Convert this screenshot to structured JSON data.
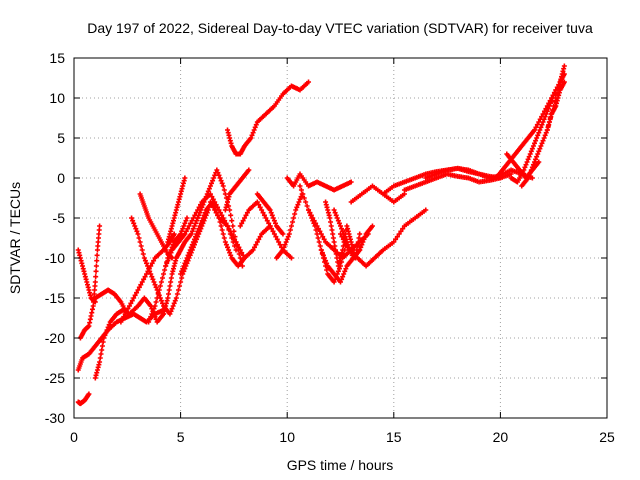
{
  "chart_data": {
    "type": "scatter",
    "title": "Day 197 of 2022, Sidereal Day-to-day VTEC variation (SDTVAR) for receiver tuva",
    "xlabel": "GPS time / hours",
    "ylabel": "SDTVAR / TECUs",
    "xlim": [
      0,
      25
    ],
    "ylim": [
      -30,
      15
    ],
    "xticks": [
      0,
      5,
      10,
      15,
      20,
      25
    ],
    "yticks": [
      -30,
      -25,
      -20,
      -15,
      -10,
      -5,
      0,
      5,
      10,
      15
    ],
    "grid": true,
    "marker": "+",
    "color": "#ff0000",
    "series": [
      {
        "x": [
          0.2,
          0.3,
          0.5,
          0.7
        ],
        "y": [
          -28,
          -28.2,
          -27.8,
          -27
        ]
      },
      {
        "x": [
          0.2,
          0.4,
          0.7,
          1.0,
          1.3,
          1.6,
          2.0,
          2.4,
          2.8,
          3.1,
          3.4,
          3.8,
          4.2
        ],
        "y": [
          -24,
          -22.5,
          -22,
          -21,
          -20,
          -19,
          -18,
          -17.5,
          -17,
          -17.5,
          -18,
          -17,
          -16.5
        ]
      },
      {
        "x": [
          0.2,
          0.4,
          0.6,
          0.8,
          1.0
        ],
        "y": [
          -9,
          -11,
          -13,
          -15,
          -15.5
        ]
      },
      {
        "x": [
          0.3,
          0.5,
          0.7,
          0.9,
          1.0,
          1.1,
          1.2
        ],
        "y": [
          -20,
          -19,
          -18.5,
          -16,
          -13,
          -9,
          -6
        ]
      },
      {
        "x": [
          1.0,
          1.2,
          1.4,
          1.7,
          2.0,
          2.3,
          2.6,
          3.0,
          3.3,
          3.6,
          3.9,
          4.2
        ],
        "y": [
          -25,
          -23,
          -20,
          -18,
          -17,
          -16.5,
          -17,
          -16,
          -15,
          -16,
          -18,
          -17
        ]
      },
      {
        "x": [
          1.0,
          1.3,
          1.6,
          1.9,
          2.2,
          2.5
        ],
        "y": [
          -15,
          -14.5,
          -14,
          -14.5,
          -15.5,
          -17
        ]
      },
      {
        "x": [
          2.2,
          2.6,
          3.0,
          3.4,
          3.8,
          4.2,
          4.5,
          4.7
        ],
        "y": [
          -18,
          -16,
          -14,
          -12,
          -10,
          -9,
          -8,
          -7
        ]
      },
      {
        "x": [
          2.7,
          3.0,
          3.3,
          3.6,
          3.9,
          4.2,
          4.5,
          4.8,
          5.1,
          5.4,
          5.7,
          6.0,
          6.3
        ],
        "y": [
          -5,
          -7,
          -10,
          -12,
          -14,
          -16,
          -17,
          -15,
          -12,
          -10,
          -8,
          -6,
          -4
        ]
      },
      {
        "x": [
          3.1,
          3.3,
          3.5,
          3.8,
          4.1,
          4.4,
          4.6
        ],
        "y": [
          -2,
          -3.5,
          -5,
          -6.5,
          -8,
          -9.5,
          -10
        ]
      },
      {
        "x": [
          3.5,
          3.8,
          4.1,
          4.4,
          4.7,
          5.0,
          5.3
        ],
        "y": [
          -18,
          -16,
          -13,
          -10,
          -8,
          -7,
          -5
        ]
      },
      {
        "x": [
          4.2,
          4.4,
          4.6,
          4.8,
          5.0,
          5.2,
          5.5,
          5.8
        ],
        "y": [
          -17,
          -15,
          -12,
          -10,
          -9,
          -8,
          -7,
          -5
        ]
      },
      {
        "x": [
          4.4,
          4.6,
          4.8,
          5.0,
          5.2
        ],
        "y": [
          -8,
          -6,
          -4,
          -2,
          0
        ]
      },
      {
        "x": [
          4.3,
          4.6,
          4.9,
          5.2,
          5.6,
          6.0,
          6.4,
          6.8,
          7.2,
          7.6
        ],
        "y": [
          -11,
          -9,
          -8,
          -7,
          -5,
          -3,
          -2,
          -4,
          -6,
          -9
        ]
      },
      {
        "x": [
          5.0,
          5.3,
          5.6,
          5.9,
          6.2,
          6.5,
          6.8,
          7.1,
          7.4,
          7.7,
          8.0
        ],
        "y": [
          -12,
          -10,
          -8,
          -6,
          -4,
          -3,
          -5,
          -8,
          -10,
          -11,
          -10
        ]
      },
      {
        "x": [
          5.8,
          6.1,
          6.4,
          6.7,
          7.0,
          7.3,
          7.6,
          7.9
        ],
        "y": [
          -5,
          -3,
          -1,
          1,
          -1,
          -4,
          -8,
          -11
        ]
      },
      {
        "x": [
          6.4,
          6.8,
          7.2,
          7.6,
          8.0,
          8.4,
          8.8,
          9.2
        ],
        "y": [
          -3,
          -5,
          -6,
          -8,
          -10,
          -9,
          -7,
          -6
        ]
      },
      {
        "x": [
          7.1,
          7.3,
          7.6,
          7.9,
          8.2
        ],
        "y": [
          -4,
          -2,
          -1,
          0,
          1
        ]
      },
      {
        "x": [
          7.2,
          7.4,
          7.6,
          7.8,
          8.0,
          8.3,
          8.6,
          9.0,
          9.4,
          9.8,
          10.2,
          10.6,
          11.0
        ],
        "y": [
          6,
          4,
          3,
          3,
          4,
          5,
          7,
          8,
          9,
          10.5,
          11.5,
          11,
          12
        ]
      },
      {
        "x": [
          7.8,
          8.2,
          8.6,
          9.0,
          9.4,
          9.8,
          10.2
        ],
        "y": [
          -6,
          -4,
          -3,
          -5,
          -7,
          -9,
          -10
        ]
      },
      {
        "x": [
          8.6,
          8.9,
          9.2,
          9.5,
          9.8
        ],
        "y": [
          -2,
          -3,
          -4,
          -6,
          -7
        ]
      },
      {
        "x": [
          9.5,
          9.8,
          10.1,
          10.4,
          10.7
        ],
        "y": [
          -10,
          -9,
          -7,
          -4,
          -2
        ]
      },
      {
        "x": [
          10.0,
          10.3,
          10.6,
          11.0,
          11.4,
          11.8,
          12.2,
          12.6,
          13.0
        ],
        "y": [
          0,
          -1,
          0.5,
          -1,
          -0.5,
          -1,
          -1.5,
          -1,
          -0.5
        ]
      },
      {
        "x": [
          10.6,
          11.0,
          11.4,
          11.8,
          12.2,
          12.6,
          13.0,
          13.4,
          13.8
        ],
        "y": [
          -1,
          -4,
          -6,
          -8,
          -9,
          -10,
          -9,
          -8,
          -7
        ]
      },
      {
        "x": [
          11.0,
          11.3,
          11.6,
          11.9,
          12.2,
          12.5,
          12.8,
          13.1,
          13.4,
          13.7,
          14.0
        ],
        "y": [
          -4,
          -6,
          -9,
          -11,
          -12,
          -13,
          -11,
          -10,
          -9,
          -7,
          -6
        ]
      },
      {
        "x": [
          11.8,
          12.0,
          12.2,
          12.4,
          12.6,
          12.8,
          13.0,
          13.2,
          13.4
        ],
        "y": [
          -3,
          -5,
          -8,
          -11,
          -9,
          -6,
          -8,
          -10,
          -7
        ]
      },
      {
        "x": [
          11.6,
          11.9,
          12.2,
          12.5,
          12.8
        ],
        "y": [
          -9,
          -12,
          -13,
          -11,
          -8
        ]
      },
      {
        "x": [
          12.2,
          12.5,
          12.8,
          13.1,
          13.4
        ],
        "y": [
          -4,
          -6,
          -8,
          -10,
          -9
        ]
      },
      {
        "x": [
          12.5,
          12.9,
          13.3,
          13.7,
          14.1,
          14.5,
          15.0,
          15.5,
          16.0,
          16.5
        ],
        "y": [
          -7,
          -9,
          -10,
          -11,
          -10,
          -9,
          -8,
          -6,
          -5,
          -4
        ]
      },
      {
        "x": [
          13.0,
          13.5,
          14.0,
          14.5,
          15.0,
          15.5
        ],
        "y": [
          -3,
          -2,
          -1,
          -2,
          -3,
          -2
        ]
      },
      {
        "x": [
          14.5,
          15.0,
          15.5,
          16.0,
          16.5,
          17.0,
          17.5,
          18.0,
          18.5,
          19.0,
          19.5,
          20.0
        ],
        "y": [
          -2,
          -1,
          -0.5,
          0,
          0.5,
          0.8,
          1,
          1.2,
          0.8,
          0.5,
          0.2,
          0
        ]
      },
      {
        "x": [
          15.5,
          16.0,
          16.5,
          17.0,
          17.5,
          18.0,
          18.5,
          19.0,
          19.5,
          20.0,
          20.5
        ],
        "y": [
          -1.5,
          -1,
          -0.5,
          0,
          0.5,
          0.2,
          0,
          -0.5,
          -0.3,
          0,
          0.5
        ]
      },
      {
        "x": [
          16.5,
          17.0,
          17.5,
          18.0,
          18.5,
          19.0,
          19.5,
          20.0,
          20.5,
          21.0,
          21.5
        ],
        "y": [
          0,
          0.5,
          1,
          1.2,
          1,
          0.5,
          0,
          0.3,
          1,
          0.5,
          0
        ]
      },
      {
        "x": [
          19.8,
          20.1,
          20.4,
          20.7,
          21.0,
          21.3,
          21.6,
          22.0,
          22.4,
          22.8,
          23.0
        ],
        "y": [
          0,
          1,
          2,
          3,
          4,
          5,
          6,
          8,
          10,
          12,
          14
        ]
      },
      {
        "x": [
          20.3,
          20.6,
          20.9,
          21.2,
          21.5,
          21.8
        ],
        "y": [
          3,
          2,
          1,
          0,
          1,
          2
        ]
      },
      {
        "x": [
          20.5,
          20.8,
          21.1,
          21.4,
          21.7,
          22.0,
          22.3,
          22.6
        ],
        "y": [
          0,
          -0.5,
          1,
          3,
          5,
          7,
          9,
          11
        ]
      },
      {
        "x": [
          21.0,
          21.3,
          21.6,
          21.9,
          22.2,
          22.5,
          22.8,
          23.0
        ],
        "y": [
          -1,
          0,
          2,
          4,
          6,
          9,
          12,
          13
        ]
      },
      {
        "x": [
          22.2,
          22.4,
          22.6,
          22.8,
          23.0
        ],
        "y": [
          6,
          8,
          9,
          11,
          12
        ]
      }
    ]
  }
}
